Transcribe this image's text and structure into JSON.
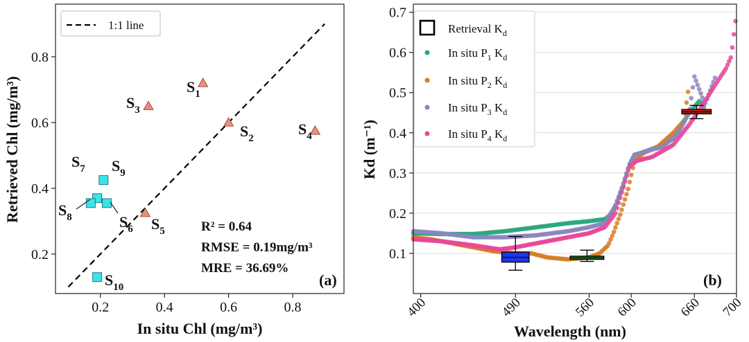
{
  "colors": {
    "triangle": "#e8907a",
    "square": "#3ee3ea",
    "p1": "#2aa77f",
    "p2": "#d87c24",
    "p3": "#8b86c0",
    "p4": "#e8489a",
    "box_blue": "#1f37e8",
    "box_green": "#2c7a2a",
    "box_red": "#b91a12"
  },
  "chart_data": [
    {
      "type": "scatter",
      "panel_label": "(a)",
      "xlabel": "In situ Chl (mg/m³)",
      "ylabel": "Retrieved Chl (mg/m³)",
      "xlim": [
        0.06,
        0.96
      ],
      "ylim": [
        0.08,
        0.96
      ],
      "xticks": [
        "0.2",
        "0.4",
        "0.6",
        "0.8"
      ],
      "yticks": [
        "0.2",
        "0.4",
        "0.6",
        "0.8"
      ],
      "legend": {
        "position": "top-left",
        "entries": [
          "1:1 line"
        ]
      },
      "one_to_one_line": [
        [
          0.1,
          0.1
        ],
        [
          0.9,
          0.9
        ]
      ],
      "triangles": [
        {
          "id": "S1",
          "x": 0.52,
          "y": 0.72,
          "label_main": "S",
          "label_sub": "1"
        },
        {
          "id": "S2",
          "x": 0.6,
          "y": 0.6,
          "label_main": "S",
          "label_sub": "2"
        },
        {
          "id": "S3",
          "x": 0.35,
          "y": 0.65,
          "label_main": "S",
          "label_sub": "3"
        },
        {
          "id": "S4",
          "x": 0.87,
          "y": 0.575,
          "label_main": "S",
          "label_sub": "4"
        },
        {
          "id": "S5",
          "x": 0.34,
          "y": 0.325,
          "label_main": "S",
          "label_sub": "5"
        }
      ],
      "squares": [
        {
          "id": "S6",
          "x": 0.22,
          "y": 0.355,
          "label_main": "S",
          "label_sub": "6"
        },
        {
          "id": "S7",
          "x": 0.19,
          "y": 0.37,
          "label_main": "S",
          "label_sub": "7"
        },
        {
          "id": "S8",
          "x": 0.17,
          "y": 0.355,
          "label_main": "S",
          "label_sub": "8"
        },
        {
          "id": "S9",
          "x": 0.21,
          "y": 0.425,
          "label_main": "S",
          "label_sub": "9"
        },
        {
          "id": "S10",
          "x": 0.19,
          "y": 0.13,
          "label_main": "S",
          "label_sub": "10"
        }
      ],
      "stats": {
        "r2": "R² = 0.64",
        "rmse": "RMSE = 0.19mg/m³",
        "mre": "MRE = 36.69%"
      }
    },
    {
      "type": "line",
      "panel_label": "(b)",
      "xlabel": "Wavelength (nm)",
      "ylabel": "Kd (m⁻¹)",
      "xlim": [
        393,
        700
      ],
      "ylim": [
        0.0,
        0.72
      ],
      "xticks": [
        "400",
        "490",
        "560",
        "600",
        "660",
        "700"
      ],
      "yticks": [
        "0.1",
        "0.2",
        "0.3",
        "0.4",
        "0.5",
        "0.6",
        "0.7"
      ],
      "legend": {
        "position": "top-left",
        "entries": [
          {
            "main": "Retrieval K",
            "sub": "d",
            "sub_tail": ""
          },
          {
            "main": "In situ P",
            "sub": "1",
            "sub_tail": " K",
            "sub2": "d"
          },
          {
            "main": "In situ P",
            "sub": "2",
            "sub_tail": " K",
            "sub2": "d"
          },
          {
            "main": "In situ P",
            "sub": "3",
            "sub_tail": " K",
            "sub2": "d"
          },
          {
            "main": "In situ P",
            "sub": "4",
            "sub_tail": " K",
            "sub2": "d"
          }
        ]
      },
      "series": [
        {
          "name": "In situ P1 Kd",
          "wavelengths": [
            393,
            420,
            450,
            480,
            510,
            540,
            560,
            575,
            582,
            587,
            592,
            598,
            603,
            610,
            620,
            630,
            640,
            648,
            655,
            660,
            665,
            670
          ],
          "values": [
            0.15,
            0.148,
            0.148,
            0.155,
            0.165,
            0.175,
            0.18,
            0.185,
            0.2,
            0.23,
            0.265,
            0.32,
            0.345,
            0.35,
            0.36,
            0.37,
            0.385,
            0.42,
            0.45,
            0.465,
            0.48,
            0.46
          ]
        },
        {
          "name": "In situ P2 Kd",
          "wavelengths": [
            393,
            410,
            430,
            450,
            470,
            490,
            505,
            520,
            540,
            560,
            570,
            578,
            583,
            590,
            597,
            603,
            612,
            625,
            640,
            650,
            655
          ],
          "values": [
            0.14,
            0.135,
            0.125,
            0.115,
            0.105,
            0.1,
            0.1,
            0.09,
            0.085,
            0.09,
            0.1,
            0.12,
            0.15,
            0.2,
            0.26,
            0.33,
            0.35,
            0.365,
            0.4,
            0.43,
            0.52
          ]
        },
        {
          "name": "In situ P3 Kd",
          "wavelengths": [
            393,
            420,
            450,
            480,
            510,
            540,
            560,
            575,
            585,
            592,
            598,
            603,
            615,
            630,
            645,
            655,
            660,
            670,
            680
          ],
          "values": [
            0.155,
            0.15,
            0.14,
            0.14,
            0.145,
            0.155,
            0.165,
            0.175,
            0.22,
            0.27,
            0.32,
            0.345,
            0.355,
            0.365,
            0.4,
            0.45,
            0.54,
            0.47,
            0.54
          ]
        },
        {
          "name": "In situ P4 Kd",
          "wavelengths": [
            393,
            420,
            450,
            475,
            490,
            510,
            540,
            560,
            575,
            585,
            592,
            598,
            605,
            620,
            640,
            655,
            668,
            680,
            690,
            695,
            700
          ],
          "values": [
            0.135,
            0.13,
            0.12,
            0.11,
            0.115,
            0.125,
            0.14,
            0.15,
            0.165,
            0.2,
            0.26,
            0.315,
            0.33,
            0.34,
            0.37,
            0.42,
            0.47,
            0.52,
            0.56,
            0.59,
            0.7
          ]
        }
      ],
      "boxes": [
        {
          "wavelength": 490,
          "x_from": 477,
          "x_to": 503,
          "q1": 0.078,
          "q3": 0.103,
          "median": 0.09,
          "whisker_low": 0.058,
          "whisker_high": 0.142,
          "color_key": "box_blue"
        },
        {
          "wavelength": 560,
          "x_from": 542,
          "x_to": 574,
          "q1": 0.085,
          "q3": 0.093,
          "median": 0.089,
          "whisker_low": 0.08,
          "whisker_high": 0.108,
          "color_key": "box_green"
        },
        {
          "wavelength": 660,
          "x_from": 648,
          "x_to": 676,
          "q1": 0.447,
          "q3": 0.458,
          "median": 0.452,
          "whisker_low": 0.435,
          "whisker_high": 0.468,
          "color_key": "box_red"
        }
      ]
    }
  ]
}
